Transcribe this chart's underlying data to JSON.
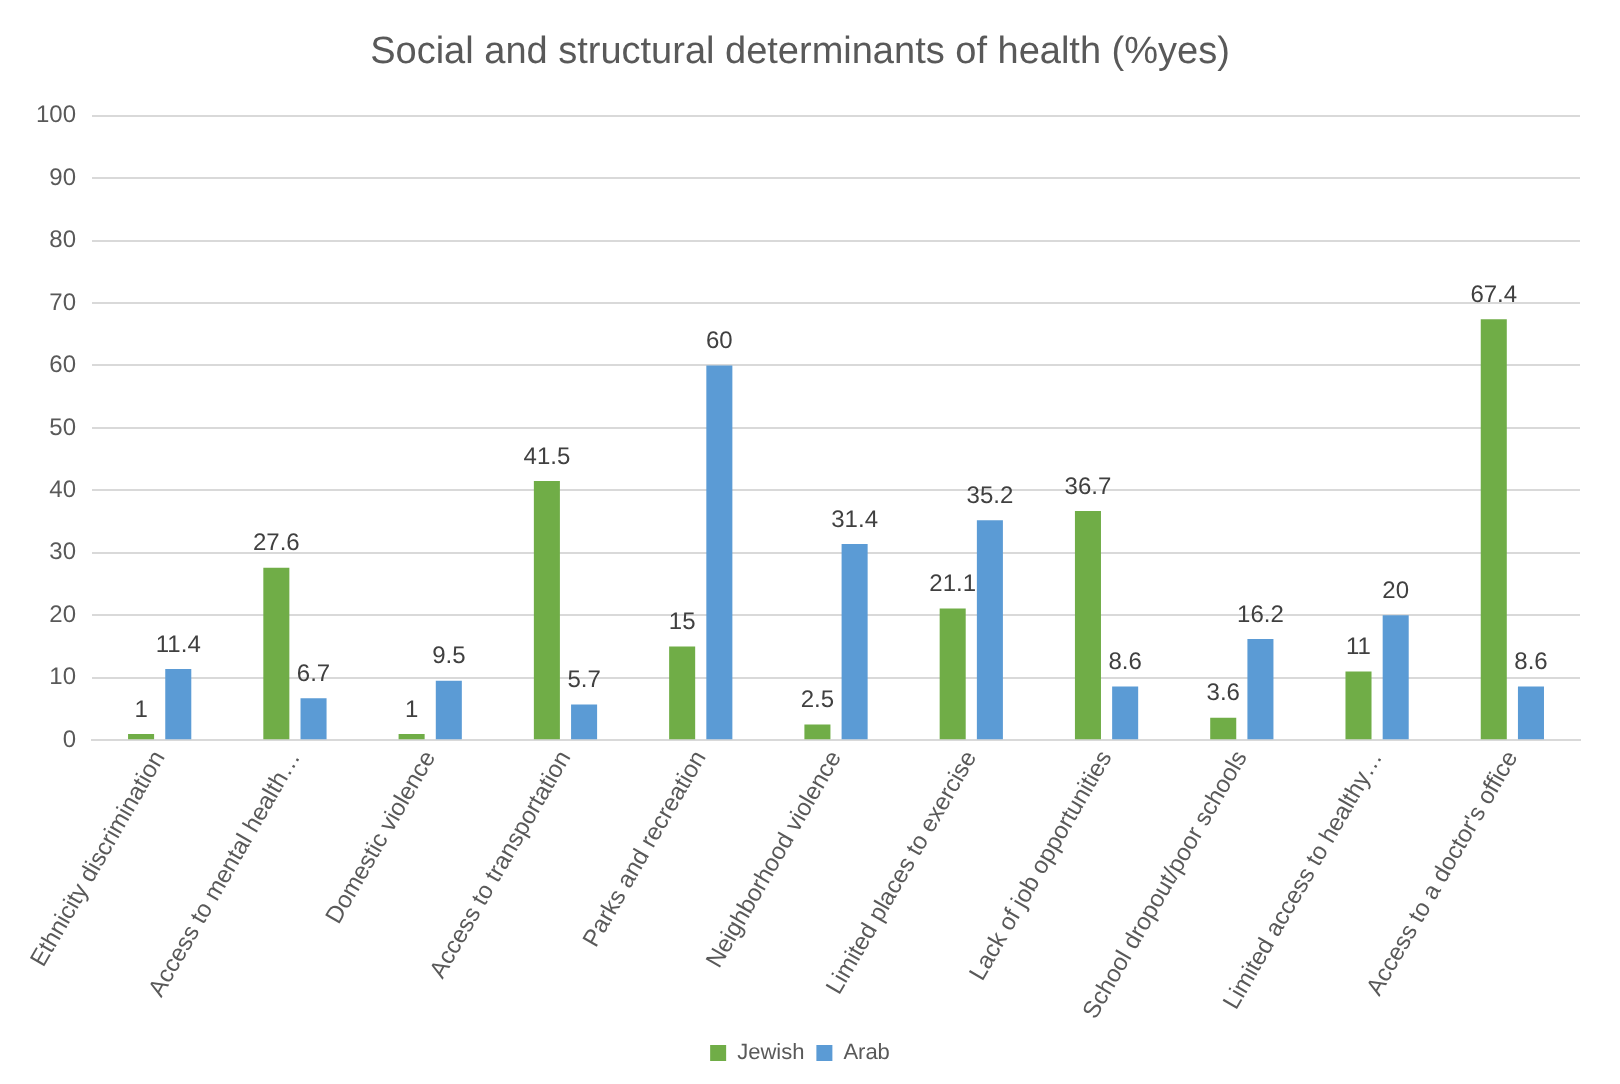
{
  "chart_data": {
    "type": "bar",
    "title": "Social and structural determinants of health (%yes)",
    "categories": [
      "Ethnicity discrimination",
      "Access to mental health…",
      "Domestic violence",
      "Access to transportation",
      "Parks and recreation",
      "Neighborhood violence",
      "Limited places to exercise",
      "Lack of job opportunities",
      "School dropout/poor schools",
      "Limited access to healthy…",
      "Access to a doctor's office"
    ],
    "series": [
      {
        "name": "Jewish",
        "color": "#70ad47",
        "values": [
          1,
          27.6,
          1,
          41.5,
          15,
          2.5,
          21.1,
          36.7,
          3.6,
          11,
          67.4
        ]
      },
      {
        "name": "Arab",
        "color": "#5b9bd5",
        "values": [
          11.4,
          6.7,
          9.5,
          5.7,
          60,
          31.4,
          35.2,
          8.6,
          16.2,
          20,
          8.6
        ]
      }
    ],
    "ylim": [
      0,
      100
    ],
    "yticks": [
      0,
      10,
      20,
      30,
      40,
      50,
      60,
      70,
      80,
      90,
      100
    ],
    "grid": "y",
    "legend": "bottom",
    "data_labels": true
  }
}
